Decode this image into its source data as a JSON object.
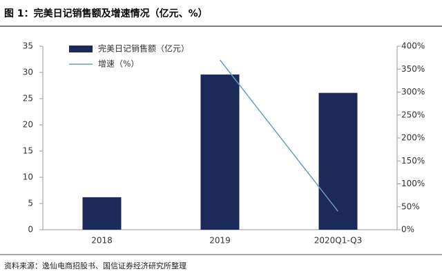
{
  "chart_data": {
    "type": "bar",
    "title": "图 1：完美日记销售额及增速情况（亿元、%）",
    "source": "资料来源：逸仙电商招股书、国信证券经济研究所整理",
    "categories": [
      "2018",
      "2019",
      "2020Q1-Q3"
    ],
    "series": [
      {
        "name": "完美日记销售额（亿元）",
        "color": "#1c2a5a",
        "values": [
          6.2,
          29.6,
          26.1
        ]
      },
      {
        "name": "增速（%）",
        "color": "#6b9db3",
        "type": "line",
        "axis": "y2",
        "values": [
          null,
          370,
          40
        ]
      }
    ],
    "ylim": [
      0,
      35
    ],
    "yticks": [
      0,
      5,
      10,
      15,
      20,
      25,
      30,
      35
    ],
    "y2lim": [
      0,
      400
    ],
    "y2ticks": [
      {
        "value": 0,
        "label": "0%"
      },
      {
        "value": 50,
        "label": "50%"
      },
      {
        "value": 100,
        "label": "100%"
      },
      {
        "value": 150,
        "label": "150%"
      },
      {
        "value": 200,
        "label": "200%"
      },
      {
        "value": 250,
        "label": "250%"
      },
      {
        "value": 300,
        "label": "300%"
      },
      {
        "value": 350,
        "label": "350%"
      },
      {
        "value": 400,
        "label": "400%"
      }
    ]
  }
}
